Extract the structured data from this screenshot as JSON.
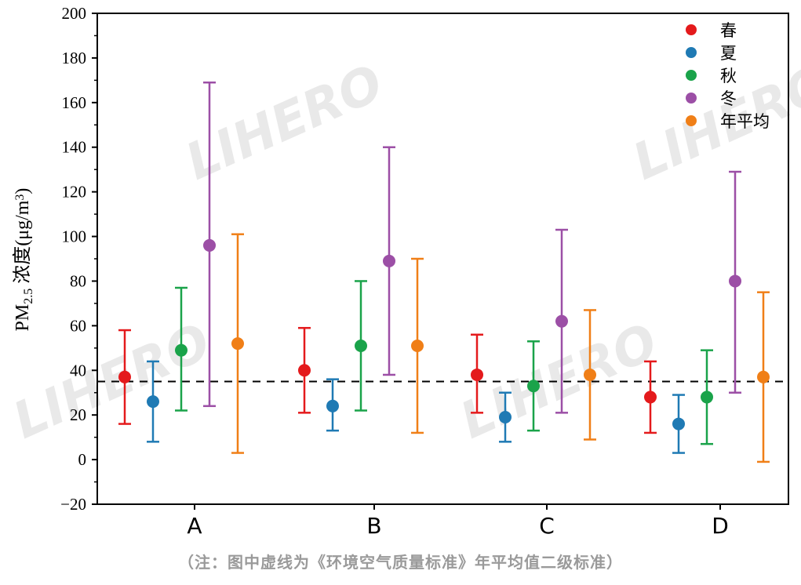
{
  "chart_data": {
    "type": "scatter",
    "subtype": "errorbar",
    "categories": [
      "A",
      "B",
      "C",
      "D"
    ],
    "ylabel": {
      "prefix": "PM",
      "sub": "2.5",
      "middle": " 浓度(μg/m",
      "sup": "3",
      "suffix": ")"
    },
    "ylim": [
      -20,
      200
    ],
    "yticks": [
      -20,
      0,
      20,
      40,
      60,
      80,
      100,
      120,
      140,
      160,
      180,
      200
    ],
    "reference_line": {
      "value": 35,
      "style": "dashed",
      "color": "#000000"
    },
    "legend_position": "top-right",
    "series": [
      {
        "name": "春",
        "color": "#e41a1c",
        "values": [
          37,
          40,
          38,
          28
        ],
        "lower": [
          16,
          21,
          21,
          12
        ],
        "upper": [
          58,
          59,
          56,
          44
        ]
      },
      {
        "name": "夏",
        "color": "#1f7ab4",
        "values": [
          26,
          24,
          19,
          16
        ],
        "lower": [
          8,
          13,
          8,
          3
        ],
        "upper": [
          44,
          36,
          30,
          29
        ]
      },
      {
        "name": "秋",
        "color": "#1aa34a",
        "values": [
          49,
          51,
          33,
          28
        ],
        "lower": [
          22,
          22,
          13,
          7
        ],
        "upper": [
          77,
          80,
          53,
          49
        ]
      },
      {
        "name": "冬",
        "color": "#9c4fa6",
        "values": [
          96,
          89,
          62,
          80
        ],
        "lower": [
          24,
          38,
          21,
          30
        ],
        "upper": [
          169,
          140,
          103,
          129
        ]
      },
      {
        "name": "年平均",
        "color": "#f07f17",
        "values": [
          52,
          51,
          38,
          37
        ],
        "lower": [
          3,
          12,
          9,
          -1
        ],
        "upper": [
          101,
          90,
          67,
          75
        ]
      }
    ]
  },
  "watermark": "LIHERO",
  "note": "（注：图中虚线为《环境空气质量标准》年平均值二级标准）"
}
